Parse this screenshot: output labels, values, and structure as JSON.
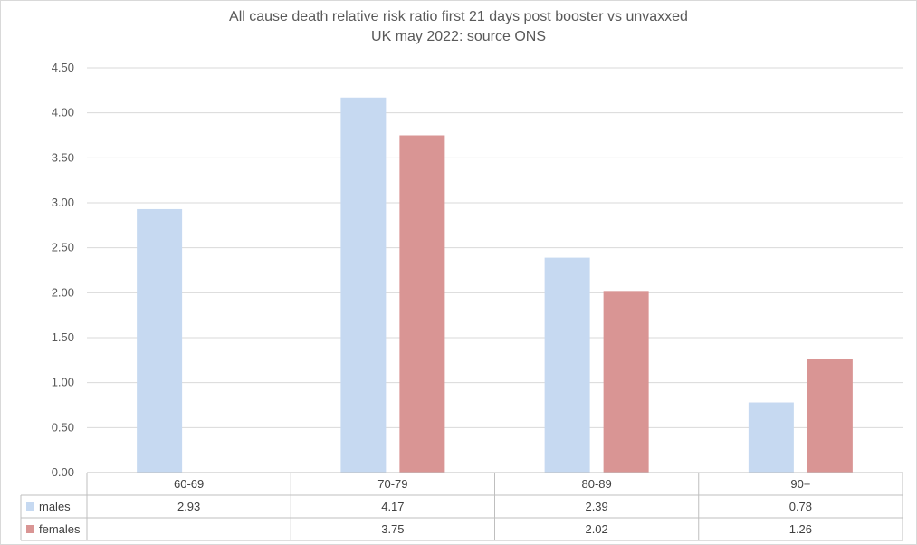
{
  "chart_data": {
    "type": "bar",
    "title": "All cause death relative risk ratio first 21 days post booster vs unvaxxed",
    "subtitle": "UK may 2022: source ONS",
    "xlabel": "",
    "ylabel": "",
    "ylim": [
      0,
      4.5
    ],
    "y_ticks": [
      "0.00",
      "0.50",
      "1.00",
      "1.50",
      "2.00",
      "2.50",
      "3.00",
      "3.50",
      "4.00",
      "4.50"
    ],
    "categories": [
      "60-69",
      "70-79",
      "80-89",
      "90+"
    ],
    "series": [
      {
        "name": "males",
        "color": "#c6d9f1",
        "values": [
          2.93,
          4.17,
          2.39,
          0.78
        ],
        "labels": [
          "2.93",
          "4.17",
          "2.39",
          "0.78"
        ]
      },
      {
        "name": "females",
        "color": "#d99594",
        "values": [
          null,
          3.75,
          2.02,
          1.26
        ],
        "labels": [
          "",
          "3.75",
          "2.02",
          "1.26"
        ]
      }
    ],
    "grid": true,
    "legend": "data-table"
  }
}
